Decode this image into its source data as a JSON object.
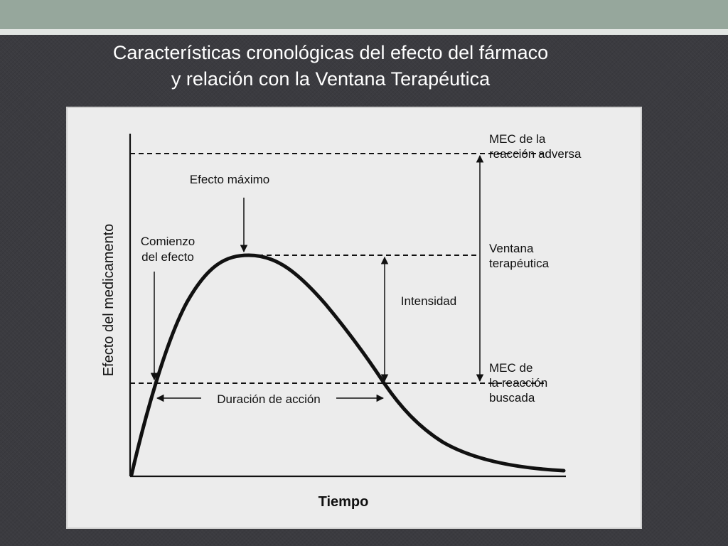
{
  "slide": {
    "title_line1": "Características cronológicas del efecto del fármaco",
    "title_line2": "y relación con la Ventana Terapéutica"
  },
  "diagram": {
    "y_axis_label": "Efecto del medicamento",
    "x_axis_label": "Tiempo",
    "labels": {
      "efecto_maximo": "Efecto máximo",
      "comienzo_line1": "Comienzo",
      "comienzo_line2": "del efecto",
      "intensidad": "Intensidad",
      "duracion": "Duración de acción",
      "mec_adversa_line1": "MEC de la",
      "mec_adversa_line2": "reacción adversa",
      "ventana_line1": "Ventana",
      "ventana_line2": "terapéutica",
      "mec_buscada_line1": "MEC de",
      "mec_buscada_line2": "la reacción",
      "mec_buscada_line3": "buscada"
    },
    "colors": {
      "ink": "#111111",
      "panel": "#ececec",
      "background": "#3b3b40",
      "header": "#96a79c"
    }
  }
}
